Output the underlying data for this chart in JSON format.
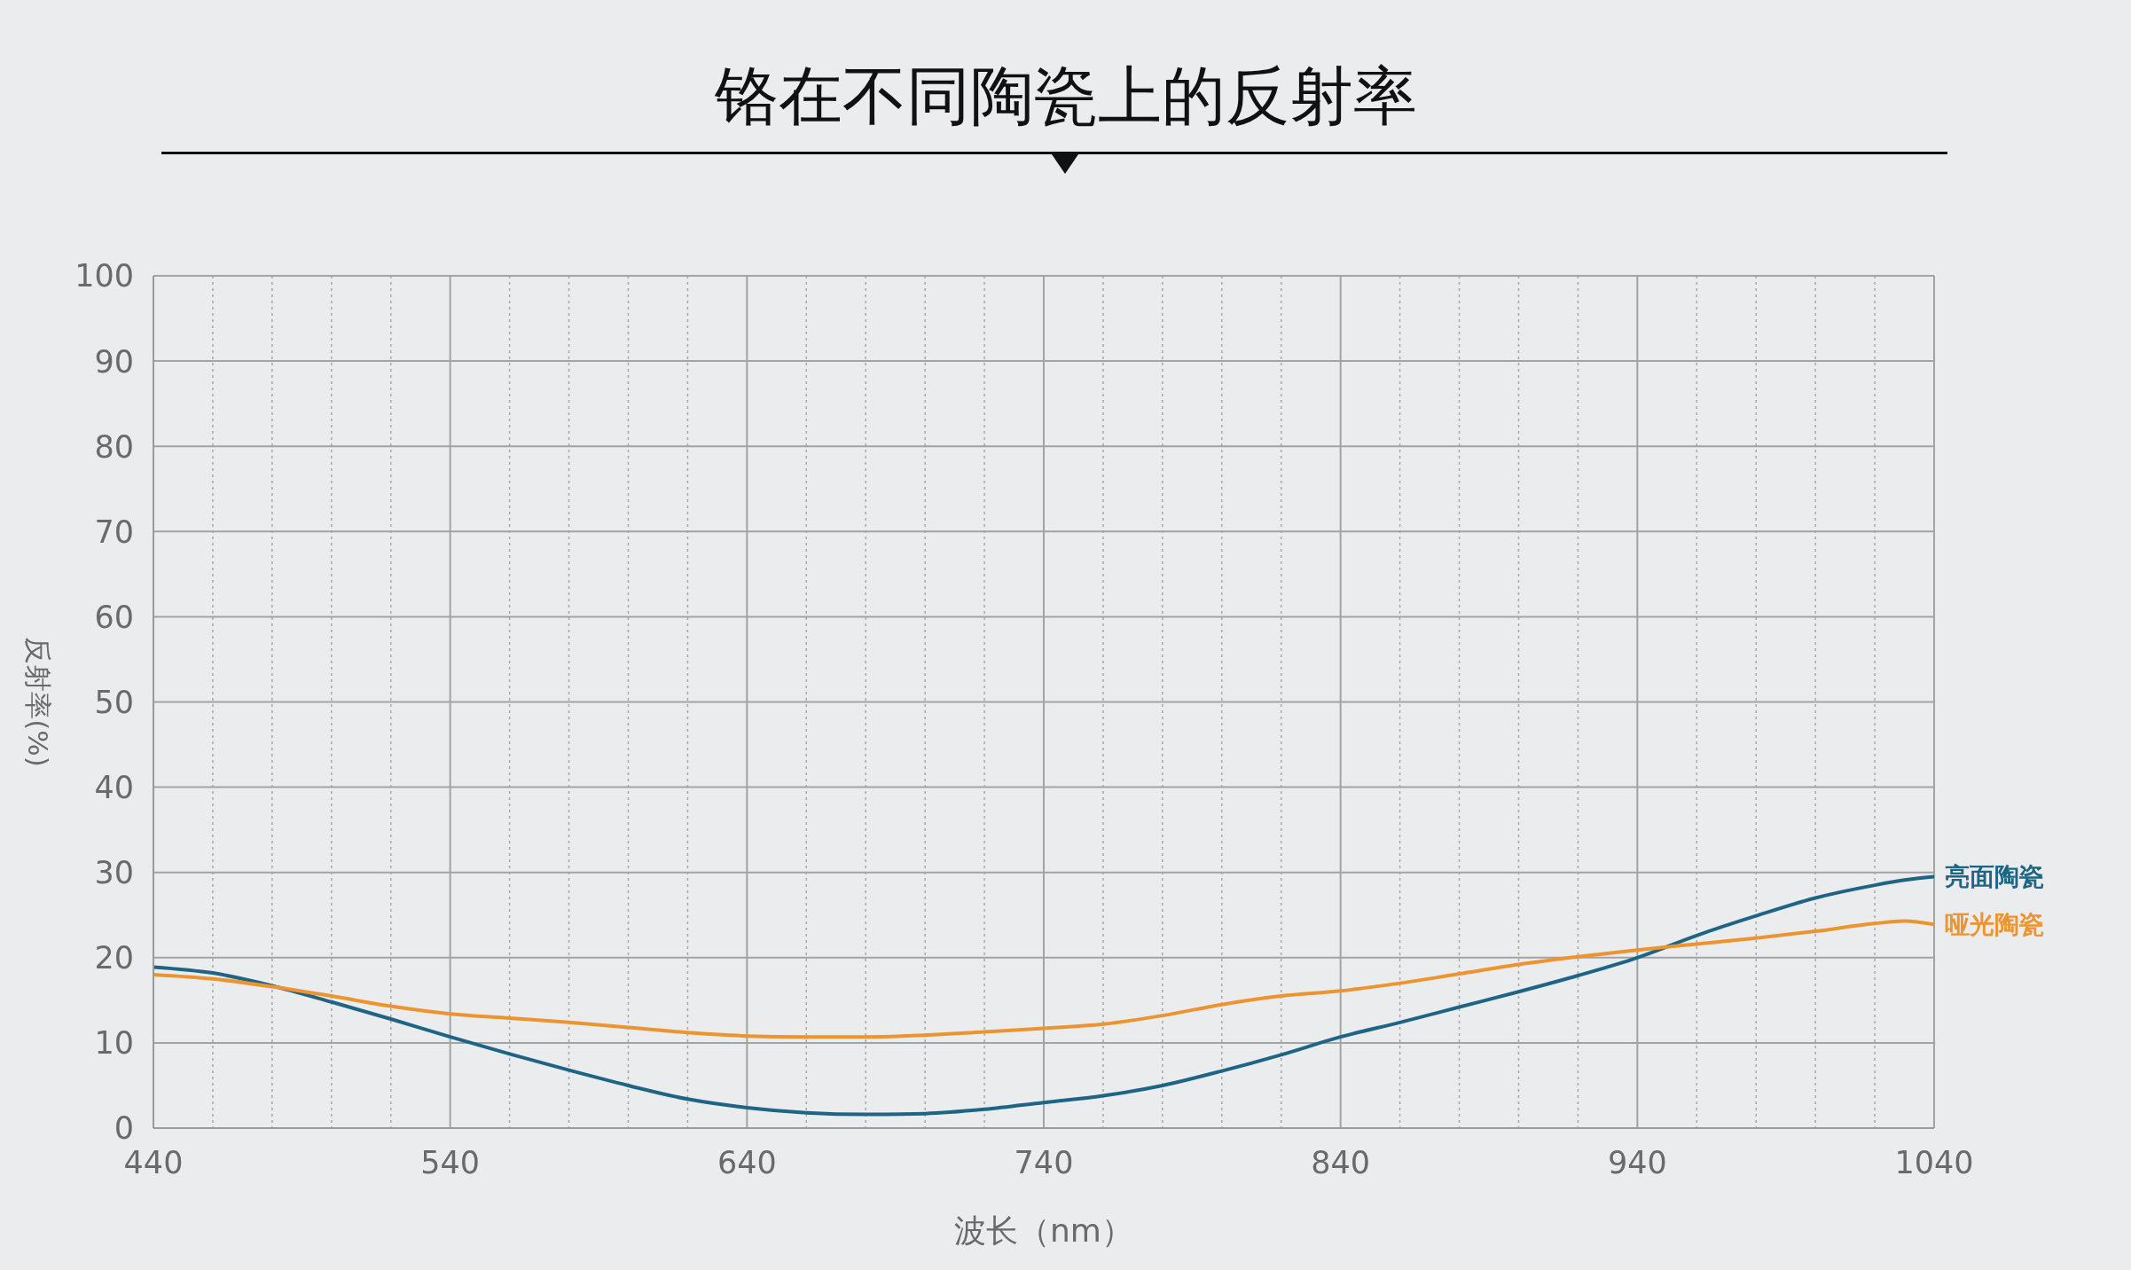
{
  "chart_data": {
    "type": "line",
    "title": "铬在不同陶瓷上的反射率",
    "xlabel": "波长（nm）",
    "ylabel": "反射率(%)",
    "xlim": [
      440,
      1040
    ],
    "ylim": [
      0,
      100
    ],
    "xticks": [
      440,
      {
        "value": 460,
        "label": null
      },
      {
        "value": 480,
        "label": null
      },
      {
        "value": 500,
        "label": null
      },
      {
        "value": 520,
        "label": null
      },
      540,
      {
        "value": 560,
        "label": null
      },
      {
        "value": 580,
        "label": null
      },
      {
        "value": 600,
        "label": null
      },
      {
        "value": 620,
        "label": null
      },
      640,
      {
        "value": 660,
        "label": null
      },
      {
        "value": 680,
        "label": null
      },
      {
        "value": 700,
        "label": null
      },
      {
        "value": 720,
        "label": null
      },
      740,
      {
        "value": 760,
        "label": null
      },
      {
        "value": 780,
        "label": null
      },
      {
        "value": 800,
        "label": null
      },
      {
        "value": 820,
        "label": null
      },
      840,
      {
        "value": 860,
        "label": null
      },
      {
        "value": 880,
        "label": null
      },
      {
        "value": 900,
        "label": null
      },
      {
        "value": 920,
        "label": null
      },
      940,
      {
        "value": 960,
        "label": null
      },
      {
        "value": 980,
        "label": null
      },
      {
        "value": 1000,
        "label": null
      },
      {
        "value": 1020,
        "label": null
      },
      1040
    ],
    "yticks": [
      0,
      10,
      20,
      30,
      40,
      50,
      60,
      70,
      80,
      90,
      100
    ],
    "grid": true,
    "x": [
      440,
      460,
      480,
      500,
      520,
      540,
      560,
      580,
      600,
      620,
      640,
      660,
      680,
      700,
      720,
      740,
      760,
      780,
      800,
      820,
      840,
      860,
      880,
      900,
      920,
      940,
      960,
      980,
      1000,
      1020,
      1030,
      1040
    ],
    "series": [
      {
        "name": "亮面陶瓷",
        "color": "#1e6585",
        "values": [
          18.9,
          18.2,
          16.7,
          14.8,
          12.8,
          10.7,
          8.7,
          6.8,
          5.0,
          3.4,
          2.4,
          1.8,
          1.6,
          1.7,
          2.2,
          3.0,
          3.8,
          5.0,
          6.7,
          8.6,
          10.7,
          12.4,
          14.2,
          16.0,
          17.9,
          20.0,
          22.6,
          24.9,
          27.0,
          28.5,
          29.1,
          29.5
        ]
      },
      {
        "name": "哑光陶瓷",
        "color": "#ec9430",
        "values": [
          18.0,
          17.5,
          16.6,
          15.5,
          14.3,
          13.4,
          12.9,
          12.4,
          11.8,
          11.2,
          10.8,
          10.7,
          10.7,
          10.9,
          11.3,
          11.7,
          12.2,
          13.2,
          14.5,
          15.5,
          16.1,
          17.0,
          18.1,
          19.2,
          20.1,
          20.9,
          21.6,
          22.3,
          23.1,
          24.0,
          24.3,
          23.9
        ]
      }
    ]
  }
}
